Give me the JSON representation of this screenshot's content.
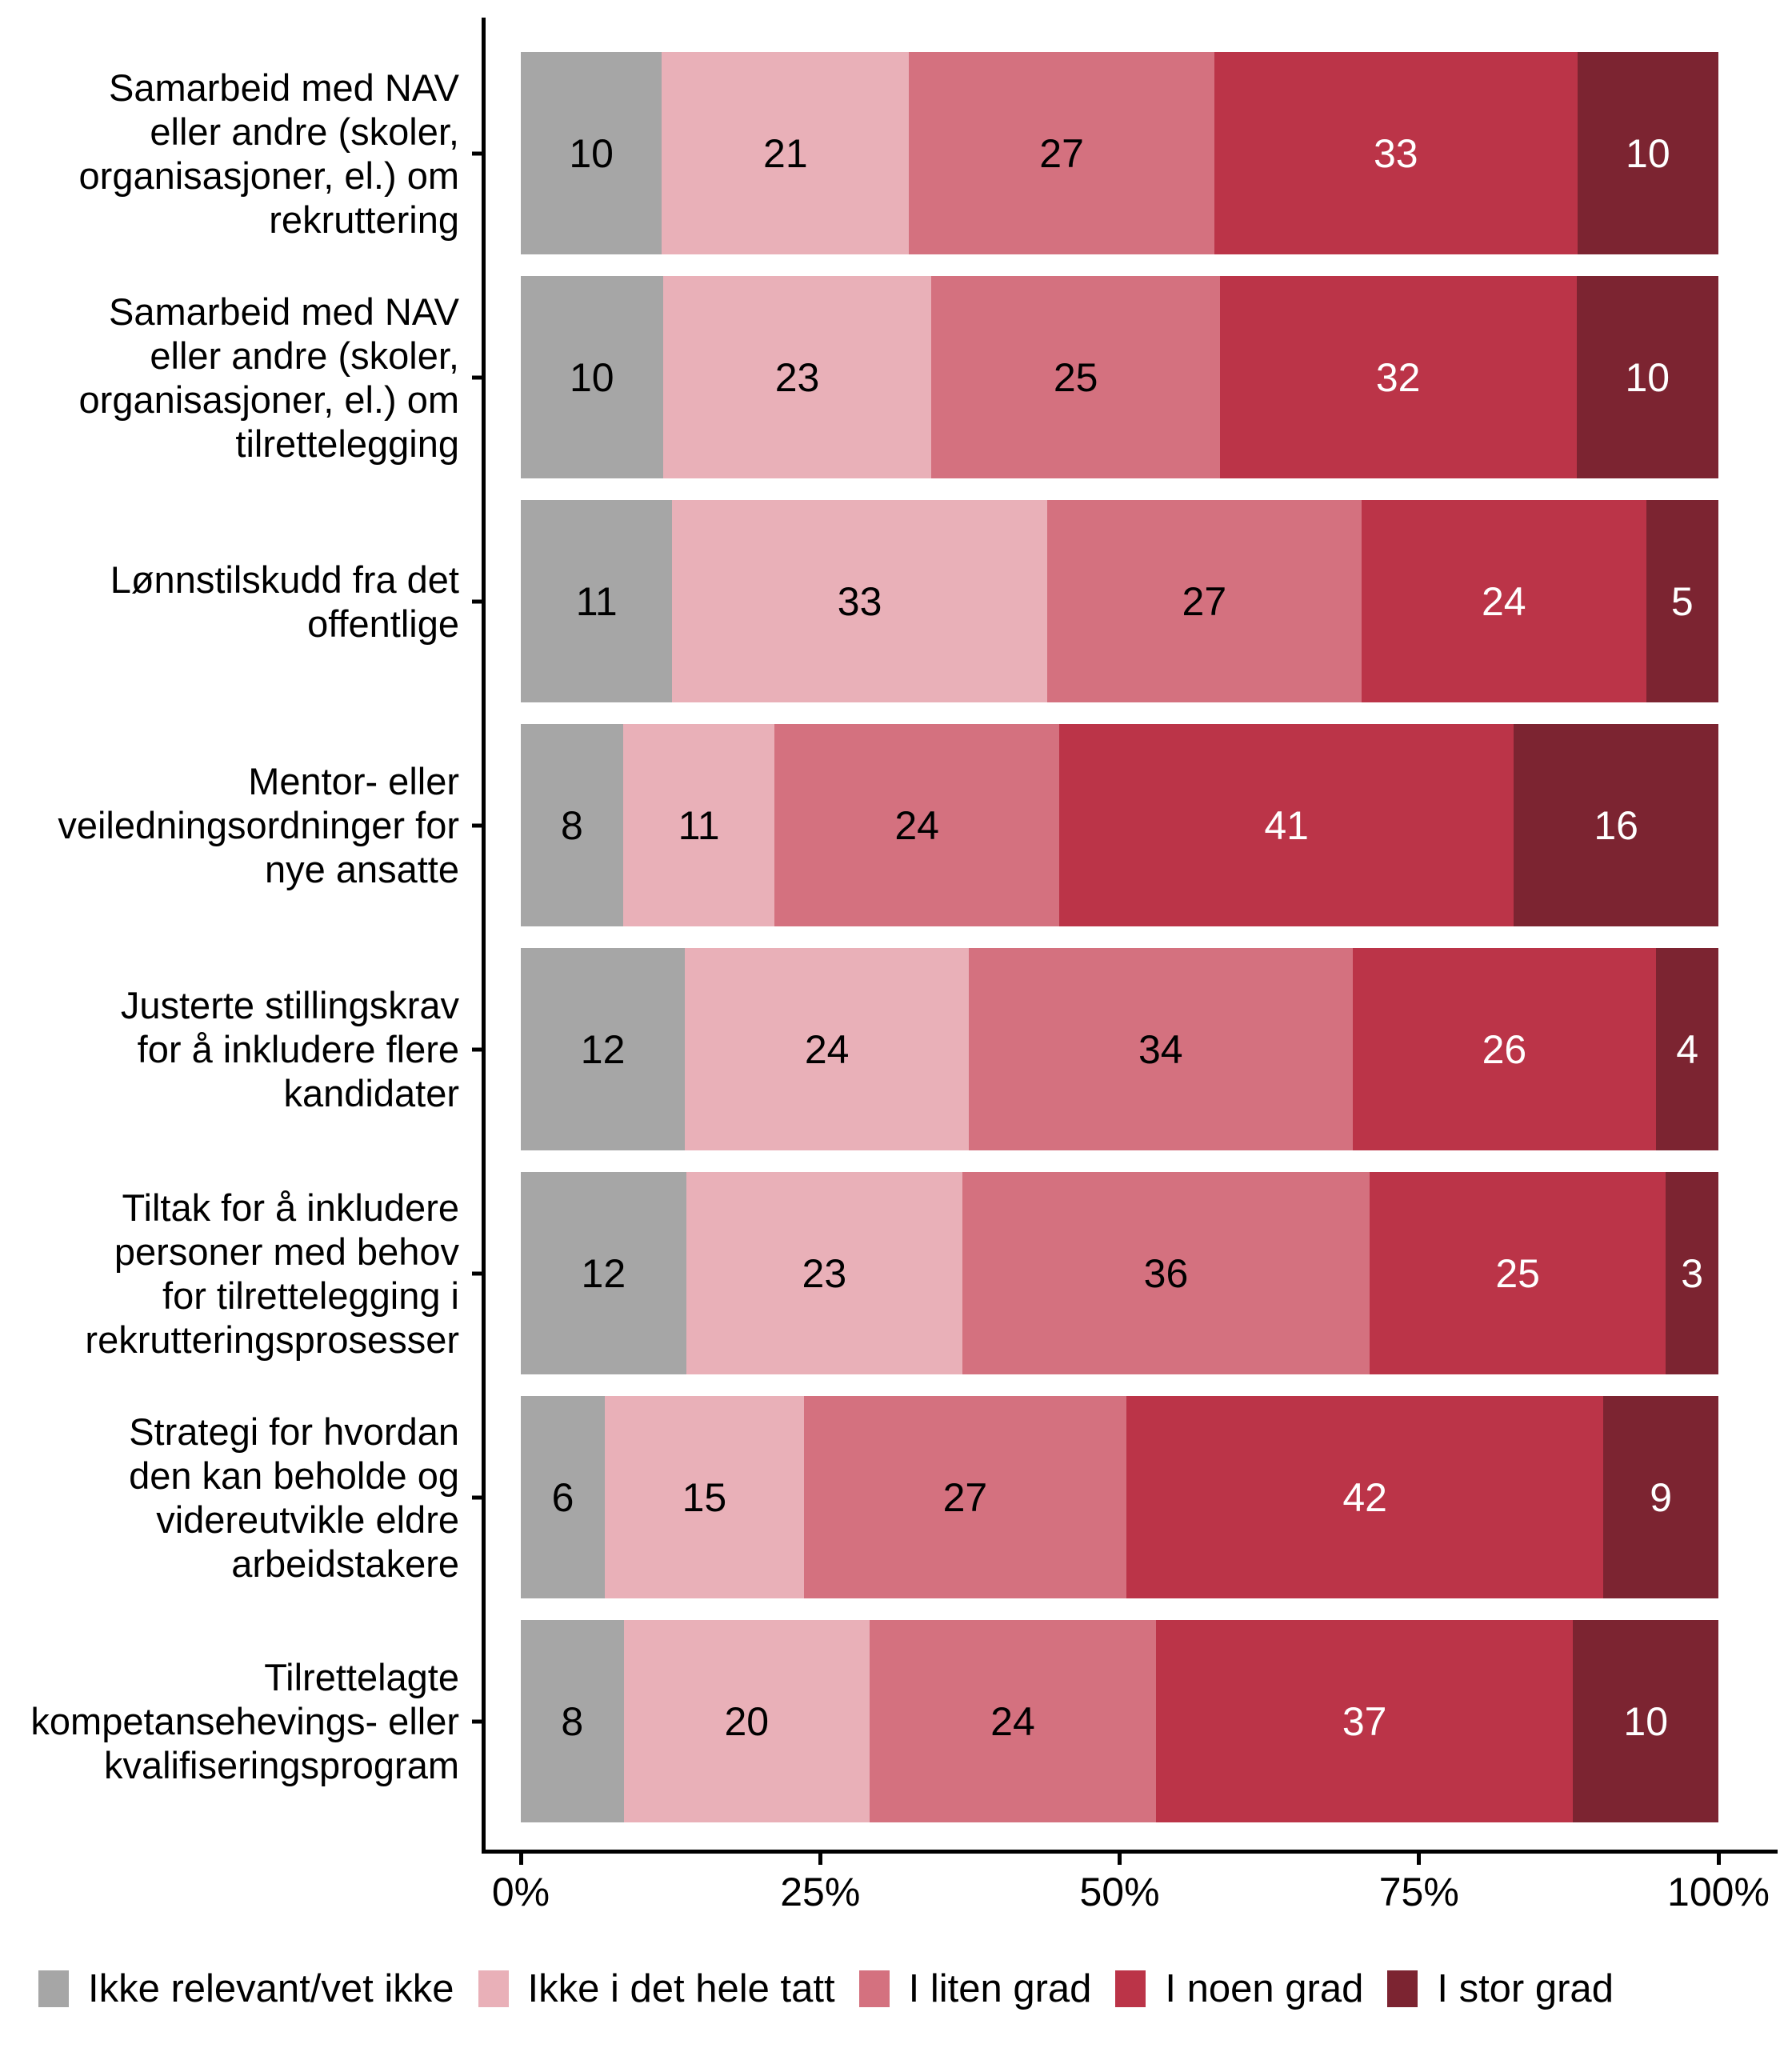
{
  "chart_data": {
    "type": "bar",
    "orientation": "horizontal-stacked",
    "unit": "percent",
    "title": "",
    "xlabel": "",
    "ylabel": "",
    "xlim": [
      0,
      100
    ],
    "grid": false,
    "legend_position": "bottom",
    "background_color": "#ffffff",
    "axis_color": "#000000",
    "x_ticks": [
      "0%",
      "25%",
      "50%",
      "75%",
      "100%"
    ],
    "categories": [
      "Samarbeid med NAV eller andre (skoler, organisasjoner, el.) om rekruttering",
      "Samarbeid med NAV eller andre (skoler, organisasjoner, el.) om tilrettelegging",
      "Lønnstilskudd fra det offentlige",
      "Mentor- eller veiledningsordninger for nye ansatte",
      "Justerte stillingskrav for å inkludere flere kandidater",
      "Tiltak for å inkludere personer med behov for tilrettelegging i rekrutteringsprosesser",
      "Strategi for hvordan den kan beholde og videreutvikle eldre arbeidstakere",
      "Tilrettelagte kompetansehevings- eller kvalifiseringsprogram"
    ],
    "categories_wrapped": [
      "Samarbeid med NAV\neller andre (skoler,\norganisasjoner, el.) om\nrekruttering",
      "Samarbeid med NAV\neller andre (skoler,\norganisasjoner, el.) om\ntilrettelegging",
      "Lønnstilskudd fra det\noffentlige",
      "Mentor- eller\nveiledningsordninger for\nnye ansatte",
      "Justerte stillingskrav\nfor å inkludere flere\nkandidater",
      "Tiltak for å inkludere\npersoner med behov\nfor tilrettelegging i\nrekrutteringsprosesser",
      "Strategi for hvordan\nden kan beholde og\nvidereutvikle eldre\narbeidstakere",
      "Tilrettelagte\nkompetansehevings- eller\nkvalifiseringsprogram"
    ],
    "series": [
      {
        "name": "Ikke relevant/vet ikke",
        "color": "#a6a6a6",
        "label_color": "#000000",
        "values": [
          10,
          10,
          11,
          8,
          12,
          12,
          6,
          8
        ]
      },
      {
        "name": "Ikke i det hele tatt",
        "color": "#e9b0b8",
        "label_color": "#000000",
        "values": [
          21,
          23,
          33,
          11,
          24,
          23,
          15,
          20
        ]
      },
      {
        "name": "I liten grad",
        "color": "#d4717f",
        "label_color": "#000000",
        "values": [
          27,
          25,
          27,
          24,
          34,
          36,
          27,
          24
        ]
      },
      {
        "name": "I noen grad",
        "color": "#bb3448",
        "label_color": "#ffffff",
        "values": [
          33,
          32,
          24,
          41,
          26,
          25,
          42,
          37
        ]
      },
      {
        "name": "I stor grad",
        "color": "#7c2431",
        "label_color": "#ffffff",
        "values": [
          10,
          10,
          5,
          16,
          4,
          3,
          9,
          10
        ]
      }
    ]
  }
}
